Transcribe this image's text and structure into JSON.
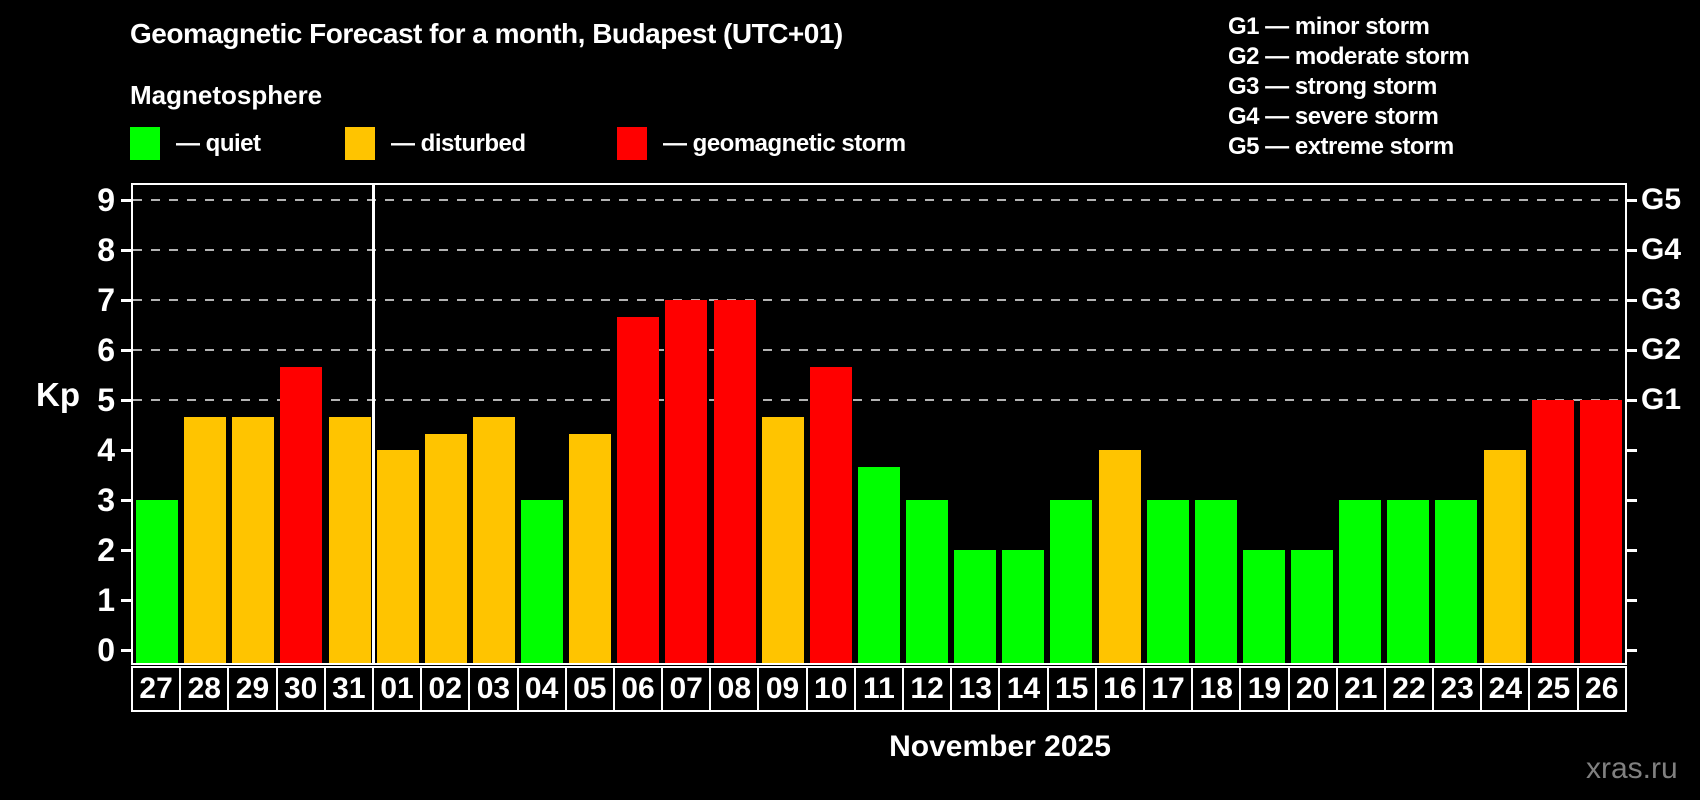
{
  "title": "Geomagnetic Forecast for a month, Budapest (UTC+01)",
  "subtitle": "Magnetosphere",
  "legend": {
    "items": [
      {
        "key": "quiet",
        "label": "— quiet"
      },
      {
        "key": "disturbed",
        "label": "— disturbed"
      },
      {
        "key": "storm",
        "label": "— geomagnetic storm"
      }
    ]
  },
  "g_legend": {
    "items": [
      "G1 — minor storm",
      "G2 — moderate storm",
      "G3 — strong storm",
      "G4 — severe storm",
      "G5 — extreme storm"
    ]
  },
  "axis": {
    "y_label": "Kp",
    "y_ticks": [
      0,
      1,
      2,
      3,
      4,
      5,
      6,
      7,
      8,
      9
    ],
    "right_labels": [
      {
        "kp": 5,
        "label": "G1"
      },
      {
        "kp": 6,
        "label": "G2"
      },
      {
        "kp": 7,
        "label": "G3"
      },
      {
        "kp": 8,
        "label": "G4"
      },
      {
        "kp": 9,
        "label": "G5"
      }
    ]
  },
  "x_axis": {
    "month_label": "November 2025"
  },
  "watermark": "xras.ru",
  "colors": {
    "quiet": "#00ff00",
    "disturbed": "#ffc400",
    "storm": "#ff0000",
    "grid": "#b3b3b3",
    "axis": "#ffffff",
    "background": "#000000",
    "watermark": "#808080"
  },
  "chart_data": {
    "type": "bar",
    "title": "Geomagnetic Forecast for a month, Budapest (UTC+01)",
    "xlabel": "November 2025",
    "ylabel": "Kp",
    "ylim": [
      0,
      9
    ],
    "grid": "horizontal dashed at Kp 5-9 (G1-G5 levels)",
    "legend_position": "top",
    "categories": [
      "27",
      "28",
      "29",
      "30",
      "31",
      "01",
      "02",
      "03",
      "04",
      "05",
      "06",
      "07",
      "08",
      "09",
      "10",
      "11",
      "12",
      "13",
      "14",
      "15",
      "16",
      "17",
      "18",
      "19",
      "20",
      "21",
      "22",
      "23",
      "24",
      "25",
      "26"
    ],
    "values": [
      3.0,
      4.67,
      4.67,
      5.67,
      4.67,
      4.0,
      4.33,
      4.67,
      3.0,
      4.33,
      6.67,
      7.0,
      7.0,
      4.67,
      5.67,
      3.67,
      3.0,
      2.0,
      2.0,
      3.0,
      4.0,
      3.0,
      3.0,
      2.0,
      2.0,
      3.0,
      3.0,
      3.0,
      4.0,
      5.0,
      5.0
    ],
    "statuses": [
      "quiet",
      "disturbed",
      "disturbed",
      "storm",
      "disturbed",
      "disturbed",
      "disturbed",
      "disturbed",
      "quiet",
      "disturbed",
      "storm",
      "storm",
      "storm",
      "disturbed",
      "storm",
      "quiet",
      "quiet",
      "quiet",
      "quiet",
      "quiet",
      "disturbed",
      "quiet",
      "quiet",
      "quiet",
      "quiet",
      "quiet",
      "quiet",
      "quiet",
      "disturbed",
      "storm",
      "storm"
    ],
    "gridlines_at": [
      5,
      6,
      7,
      8,
      9
    ],
    "month_boundary_after_index": 4
  }
}
